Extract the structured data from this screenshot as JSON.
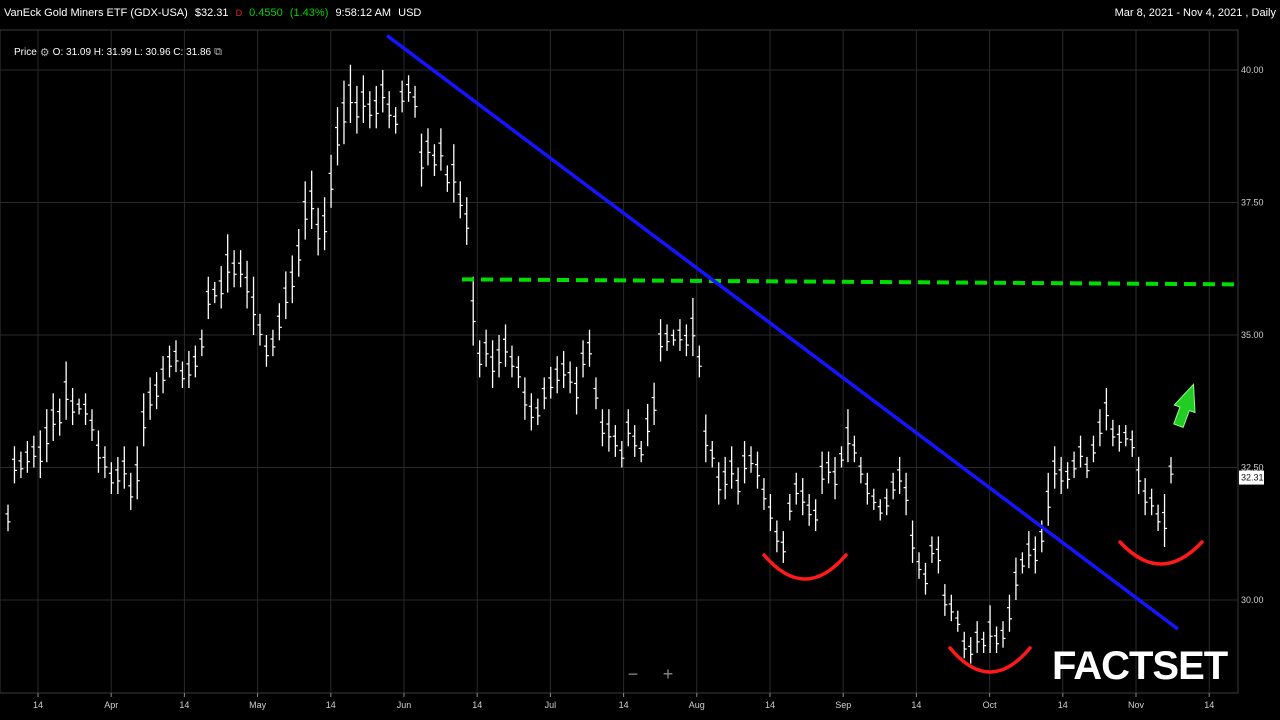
{
  "header": {
    "security": "VanEck Gold Miners ETF (GDX-USA)",
    "price": "$32.31",
    "direction": "D",
    "change": "0.4550",
    "change_pct": "(1.43%)",
    "time": "9:58:12 AM",
    "currency": "USD",
    "range": "Mar 8, 2021 - Nov 4, 2021 , Daily"
  },
  "legend": {
    "label": "Price",
    "ohlc": "O: 31.09 H: 31.99 L: 30.96 C: 31.86",
    "gear_icon": "gear-icon",
    "popout_icon": "popout-icon"
  },
  "zoom": {
    "minus": "−",
    "plus": "+"
  },
  "brand": "FACTSET",
  "colors": {
    "bars": "#ffffff",
    "trendline": "#1414ff",
    "resistance": "#00dd00",
    "arcs": "#ff1a1a",
    "arrow": "#22cc22",
    "grid": "#2a2a2a",
    "last_price_bg": "#ffffff"
  },
  "chart_data": {
    "type": "ohlc",
    "ylim": [
      28.0,
      41.0
    ],
    "yticks": [
      "30.00",
      "32.50",
      "35.00",
      "37.50",
      "40.00"
    ],
    "xlabels": [
      "14",
      "Apr",
      "14",
      "May",
      "14",
      "Jun",
      "14",
      "Jul",
      "14",
      "Aug",
      "14",
      "Sep",
      "14",
      "Oct",
      "14",
      "Nov",
      "14"
    ],
    "last_price": "32.31",
    "resistance_level": 36.05,
    "trendline": {
      "from_value": 40.65,
      "to_value": 29.45
    },
    "bars": [
      {
        "h": 31.8,
        "l": 31.3
      },
      {
        "h": 32.9,
        "l": 32.2
      },
      {
        "h": 32.8,
        "l": 32.3
      },
      {
        "h": 33.0,
        "l": 32.4
      },
      {
        "h": 33.1,
        "l": 32.5
      },
      {
        "h": 33.2,
        "l": 32.3
      },
      {
        "h": 33.6,
        "l": 32.6
      },
      {
        "h": 33.9,
        "l": 33.0
      },
      {
        "h": 33.8,
        "l": 33.1
      },
      {
        "h": 34.5,
        "l": 33.4
      },
      {
        "h": 34.0,
        "l": 33.3
      },
      {
        "h": 33.8,
        "l": 33.5
      },
      {
        "h": 33.9,
        "l": 33.3
      },
      {
        "h": 33.6,
        "l": 33.0
      },
      {
        "h": 33.2,
        "l": 32.4
      },
      {
        "h": 32.9,
        "l": 32.3
      },
      {
        "h": 32.6,
        "l": 32.0
      },
      {
        "h": 32.7,
        "l": 32.0
      },
      {
        "h": 32.9,
        "l": 32.1
      },
      {
        "h": 32.4,
        "l": 31.7
      },
      {
        "h": 32.9,
        "l": 31.9
      },
      {
        "h": 33.9,
        "l": 32.9
      },
      {
        "h": 34.2,
        "l": 33.4
      },
      {
        "h": 34.3,
        "l": 33.6
      },
      {
        "h": 34.6,
        "l": 33.9
      },
      {
        "h": 34.8,
        "l": 34.2
      },
      {
        "h": 34.9,
        "l": 34.3
      },
      {
        "h": 34.5,
        "l": 34.0
      },
      {
        "h": 34.7,
        "l": 34.0
      },
      {
        "h": 34.8,
        "l": 34.2
      },
      {
        "h": 35.1,
        "l": 34.6
      },
      {
        "h": 36.1,
        "l": 35.3
      },
      {
        "h": 36.0,
        "l": 35.6
      },
      {
        "h": 36.3,
        "l": 35.5
      },
      {
        "h": 36.9,
        "l": 35.8
      },
      {
        "h": 36.6,
        "l": 35.9
      },
      {
        "h": 36.6,
        "l": 35.9
      },
      {
        "h": 36.4,
        "l": 35.5
      },
      {
        "h": 36.1,
        "l": 35.0
      },
      {
        "h": 35.4,
        "l": 34.8
      },
      {
        "h": 35.0,
        "l": 34.4
      },
      {
        "h": 35.1,
        "l": 34.6
      },
      {
        "h": 35.6,
        "l": 34.9
      },
      {
        "h": 36.2,
        "l": 35.3
      },
      {
        "h": 36.5,
        "l": 35.6
      },
      {
        "h": 37.0,
        "l": 36.1
      },
      {
        "h": 37.9,
        "l": 36.8
      },
      {
        "h": 38.1,
        "l": 37.0
      },
      {
        "h": 37.4,
        "l": 36.5
      },
      {
        "h": 37.6,
        "l": 36.6
      },
      {
        "h": 38.4,
        "l": 37.4
      },
      {
        "h": 39.3,
        "l": 38.2
      },
      {
        "h": 39.8,
        "l": 38.6
      },
      {
        "h": 40.1,
        "l": 39.0
      },
      {
        "h": 39.7,
        "l": 38.8
      },
      {
        "h": 39.9,
        "l": 39.0
      },
      {
        "h": 39.6,
        "l": 38.9
      },
      {
        "h": 39.7,
        "l": 38.9
      },
      {
        "h": 40.0,
        "l": 39.2
      },
      {
        "h": 39.6,
        "l": 38.9
      },
      {
        "h": 39.3,
        "l": 38.8
      },
      {
        "h": 39.8,
        "l": 39.2
      },
      {
        "h": 39.9,
        "l": 39.4
      },
      {
        "h": 39.7,
        "l": 39.1
      },
      {
        "h": 38.8,
        "l": 37.8
      },
      {
        "h": 38.9,
        "l": 38.2
      },
      {
        "h": 38.6,
        "l": 38.0
      },
      {
        "h": 38.9,
        "l": 38.1
      },
      {
        "h": 38.2,
        "l": 37.7
      },
      {
        "h": 38.6,
        "l": 37.5
      },
      {
        "h": 37.9,
        "l": 37.2
      },
      {
        "h": 37.6,
        "l": 36.7
      },
      {
        "h": 36.1,
        "l": 34.8
      },
      {
        "h": 34.9,
        "l": 34.2
      },
      {
        "h": 35.1,
        "l": 34.4
      },
      {
        "h": 34.9,
        "l": 34.0
      },
      {
        "h": 35.0,
        "l": 34.2
      },
      {
        "h": 35.2,
        "l": 34.4
      },
      {
        "h": 34.8,
        "l": 34.2
      },
      {
        "h": 34.6,
        "l": 34.0
      },
      {
        "h": 34.2,
        "l": 33.4
      },
      {
        "h": 33.9,
        "l": 33.2
      },
      {
        "h": 33.8,
        "l": 33.3
      },
      {
        "h": 34.2,
        "l": 33.6
      },
      {
        "h": 34.4,
        "l": 33.8
      },
      {
        "h": 34.6,
        "l": 33.9
      },
      {
        "h": 34.7,
        "l": 34.0
      },
      {
        "h": 34.5,
        "l": 33.9
      },
      {
        "h": 34.4,
        "l": 33.5
      },
      {
        "h": 34.9,
        "l": 34.2
      },
      {
        "h": 35.1,
        "l": 34.4
      },
      {
        "h": 34.2,
        "l": 33.6
      },
      {
        "h": 33.6,
        "l": 32.9
      },
      {
        "h": 33.6,
        "l": 32.8
      },
      {
        "h": 33.3,
        "l": 32.7
      },
      {
        "h": 33.0,
        "l": 32.5
      },
      {
        "h": 33.6,
        "l": 32.9
      },
      {
        "h": 33.3,
        "l": 32.7
      },
      {
        "h": 33.0,
        "l": 32.6
      },
      {
        "h": 33.7,
        "l": 32.9
      },
      {
        "h": 34.1,
        "l": 33.3
      },
      {
        "h": 35.3,
        "l": 34.5
      },
      {
        "h": 35.2,
        "l": 34.7
      },
      {
        "h": 35.1,
        "l": 34.8
      },
      {
        "h": 35.3,
        "l": 34.7
      },
      {
        "h": 35.2,
        "l": 34.6
      },
      {
        "h": 35.7,
        "l": 34.6
      },
      {
        "h": 34.8,
        "l": 34.2
      },
      {
        "h": 33.5,
        "l": 32.6
      },
      {
        "h": 33.0,
        "l": 32.5
      },
      {
        "h": 32.6,
        "l": 31.8
      },
      {
        "h": 32.7,
        "l": 31.9
      },
      {
        "h": 32.9,
        "l": 32.1
      },
      {
        "h": 32.5,
        "l": 31.8
      },
      {
        "h": 33.0,
        "l": 32.2
      },
      {
        "h": 32.9,
        "l": 32.4
      },
      {
        "h": 32.8,
        "l": 32.1
      },
      {
        "h": 32.3,
        "l": 31.7
      },
      {
        "h": 32.0,
        "l": 31.3
      },
      {
        "h": 31.5,
        "l": 30.9
      },
      {
        "h": 31.3,
        "l": 30.7
      },
      {
        "h": 32.0,
        "l": 31.5
      },
      {
        "h": 32.4,
        "l": 31.8
      },
      {
        "h": 32.3,
        "l": 31.6
      },
      {
        "h": 32.0,
        "l": 31.4
      },
      {
        "h": 31.9,
        "l": 31.3
      },
      {
        "h": 32.8,
        "l": 32.0
      },
      {
        "h": 32.8,
        "l": 32.2
      },
      {
        "h": 32.7,
        "l": 31.9
      },
      {
        "h": 32.9,
        "l": 32.5
      },
      {
        "h": 33.6,
        "l": 32.6
      },
      {
        "h": 33.1,
        "l": 32.6
      },
      {
        "h": 32.7,
        "l": 32.2
      },
      {
        "h": 32.4,
        "l": 31.8
      },
      {
        "h": 32.1,
        "l": 31.7
      },
      {
        "h": 31.9,
        "l": 31.5
      },
      {
        "h": 32.1,
        "l": 31.6
      },
      {
        "h": 32.4,
        "l": 31.9
      },
      {
        "h": 32.7,
        "l": 32.0
      },
      {
        "h": 32.4,
        "l": 31.6
      },
      {
        "h": 31.5,
        "l": 30.7
      },
      {
        "h": 30.9,
        "l": 30.4
      },
      {
        "h": 30.7,
        "l": 30.1
      },
      {
        "h": 31.2,
        "l": 30.7
      },
      {
        "h": 31.2,
        "l": 30.5
      },
      {
        "h": 30.3,
        "l": 29.7
      },
      {
        "h": 30.1,
        "l": 29.6
      },
      {
        "h": 29.8,
        "l": 29.4
      },
      {
        "h": 29.4,
        "l": 28.9
      },
      {
        "h": 29.3,
        "l": 28.8
      },
      {
        "h": 29.6,
        "l": 29.0
      },
      {
        "h": 29.4,
        "l": 29.0
      },
      {
        "h": 29.9,
        "l": 29.0
      },
      {
        "h": 29.5,
        "l": 29.0
      },
      {
        "h": 29.6,
        "l": 29.1
      },
      {
        "h": 30.1,
        "l": 29.4
      },
      {
        "h": 30.8,
        "l": 30.0
      },
      {
        "h": 30.9,
        "l": 30.5
      },
      {
        "h": 31.3,
        "l": 30.6
      },
      {
        "h": 31.2,
        "l": 30.5
      },
      {
        "h": 31.5,
        "l": 30.9
      },
      {
        "h": 32.4,
        "l": 31.4
      },
      {
        "h": 32.9,
        "l": 32.1
      },
      {
        "h": 32.7,
        "l": 32.0
      },
      {
        "h": 32.6,
        "l": 32.1
      },
      {
        "h": 32.8,
        "l": 32.3
      },
      {
        "h": 33.1,
        "l": 32.5
      },
      {
        "h": 32.7,
        "l": 32.3
      },
      {
        "h": 33.1,
        "l": 32.6
      },
      {
        "h": 33.6,
        "l": 32.9
      },
      {
        "h": 34.0,
        "l": 33.2
      },
      {
        "h": 33.4,
        "l": 32.9
      },
      {
        "h": 33.3,
        "l": 32.8
      },
      {
        "h": 33.3,
        "l": 32.9
      },
      {
        "h": 33.2,
        "l": 32.7
      },
      {
        "h": 32.7,
        "l": 32.0
      },
      {
        "h": 32.3,
        "l": 31.6
      },
      {
        "h": 32.1,
        "l": 31.6
      },
      {
        "h": 31.8,
        "l": 31.3
      },
      {
        "h": 32.0,
        "l": 31.0
      },
      {
        "h": 32.7,
        "l": 32.2
      }
    ]
  }
}
